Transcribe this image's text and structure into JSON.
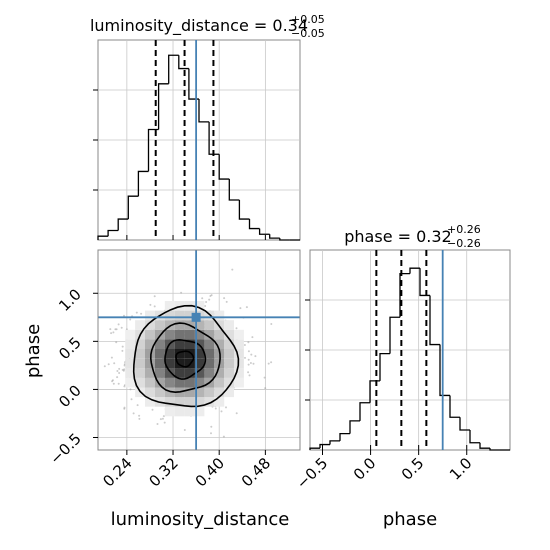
{
  "colors": {
    "truth": "#4682b4",
    "hist": "#000000",
    "quantile": "#000000",
    "grid": "#c8c8c8",
    "samples": "#9a9a9a"
  },
  "chart_data": [
    {
      "type": "histogram",
      "panel": "luminosity_distance-marginal",
      "title": {
        "param": "luminosity_distance",
        "value": "0.34",
        "plus": "+0.05",
        "minus": "−0.05"
      },
      "xlim": [
        0.19,
        0.54
      ],
      "xticks": [
        0.24,
        0.32,
        0.4,
        0.48
      ],
      "bin_edges": [
        0.19,
        0.2075,
        0.225,
        0.2425,
        0.26,
        0.2775,
        0.295,
        0.3125,
        0.33,
        0.3475,
        0.365,
        0.3825,
        0.4,
        0.4175,
        0.435,
        0.4525,
        0.47,
        0.4875,
        0.505,
        0.5225,
        0.54
      ],
      "counts": [
        2,
        5,
        11,
        23,
        36,
        58,
        82,
        97,
        90,
        74,
        62,
        45,
        32,
        21,
        11,
        6,
        3,
        1,
        0,
        0
      ],
      "ylim": [
        0,
        105
      ],
      "quantiles": [
        0.29,
        0.34,
        0.39
      ],
      "truth": 0.36,
      "grid": true
    },
    {
      "type": "histogram",
      "panel": "phase-marginal",
      "title": {
        "param": "phase",
        "value": "0.32",
        "plus": "+0.26",
        "minus": "−0.26"
      },
      "xlim": [
        -0.63,
        1.45
      ],
      "xticks": [
        -0.5,
        0.0,
        0.5,
        1.0
      ],
      "tick_labels": [
        "−0.5",
        "0.0",
        "0.5",
        "1.0"
      ],
      "xlabel": "phase",
      "bin_edges": [
        -0.63,
        -0.526,
        -0.422,
        -0.318,
        -0.214,
        -0.11,
        -0.006,
        0.098,
        0.202,
        0.306,
        0.41,
        0.514,
        0.618,
        0.722,
        0.826,
        0.93,
        1.034,
        1.138,
        1.242,
        1.346,
        1.45
      ],
      "counts": [
        1,
        3,
        5,
        9,
        16,
        26,
        38,
        53,
        73,
        97,
        100,
        85,
        58,
        30,
        18,
        11,
        4,
        1,
        0,
        0
      ],
      "ylim": [
        0,
        110
      ],
      "quantiles": [
        0.06,
        0.32,
        0.58
      ],
      "truth": 0.75,
      "grid": true
    },
    {
      "type": "heatmap",
      "panel": "2d-corner",
      "xlim": [
        0.19,
        0.54
      ],
      "ylim": [
        -0.63,
        1.45
      ],
      "xticks": [
        0.24,
        0.32,
        0.4,
        0.48
      ],
      "x_tick_labels": [
        "0.24",
        "0.32",
        "0.40",
        "0.48"
      ],
      "yticks": [
        -0.5,
        0.0,
        0.5,
        1.0
      ],
      "y_tick_labels": [
        "−0.5",
        "0.0",
        "0.5",
        "1.0"
      ],
      "xlabel": "luminosity_distance",
      "ylabel": "phase",
      "center": [
        0.34,
        0.32
      ],
      "contour_radii": [
        [
          0.015,
          0.08
        ],
        [
          0.035,
          0.2
        ],
        [
          0.06,
          0.35
        ],
        [
          0.09,
          0.52
        ]
      ],
      "truth": [
        0.36,
        0.75
      ],
      "grid": true
    }
  ]
}
